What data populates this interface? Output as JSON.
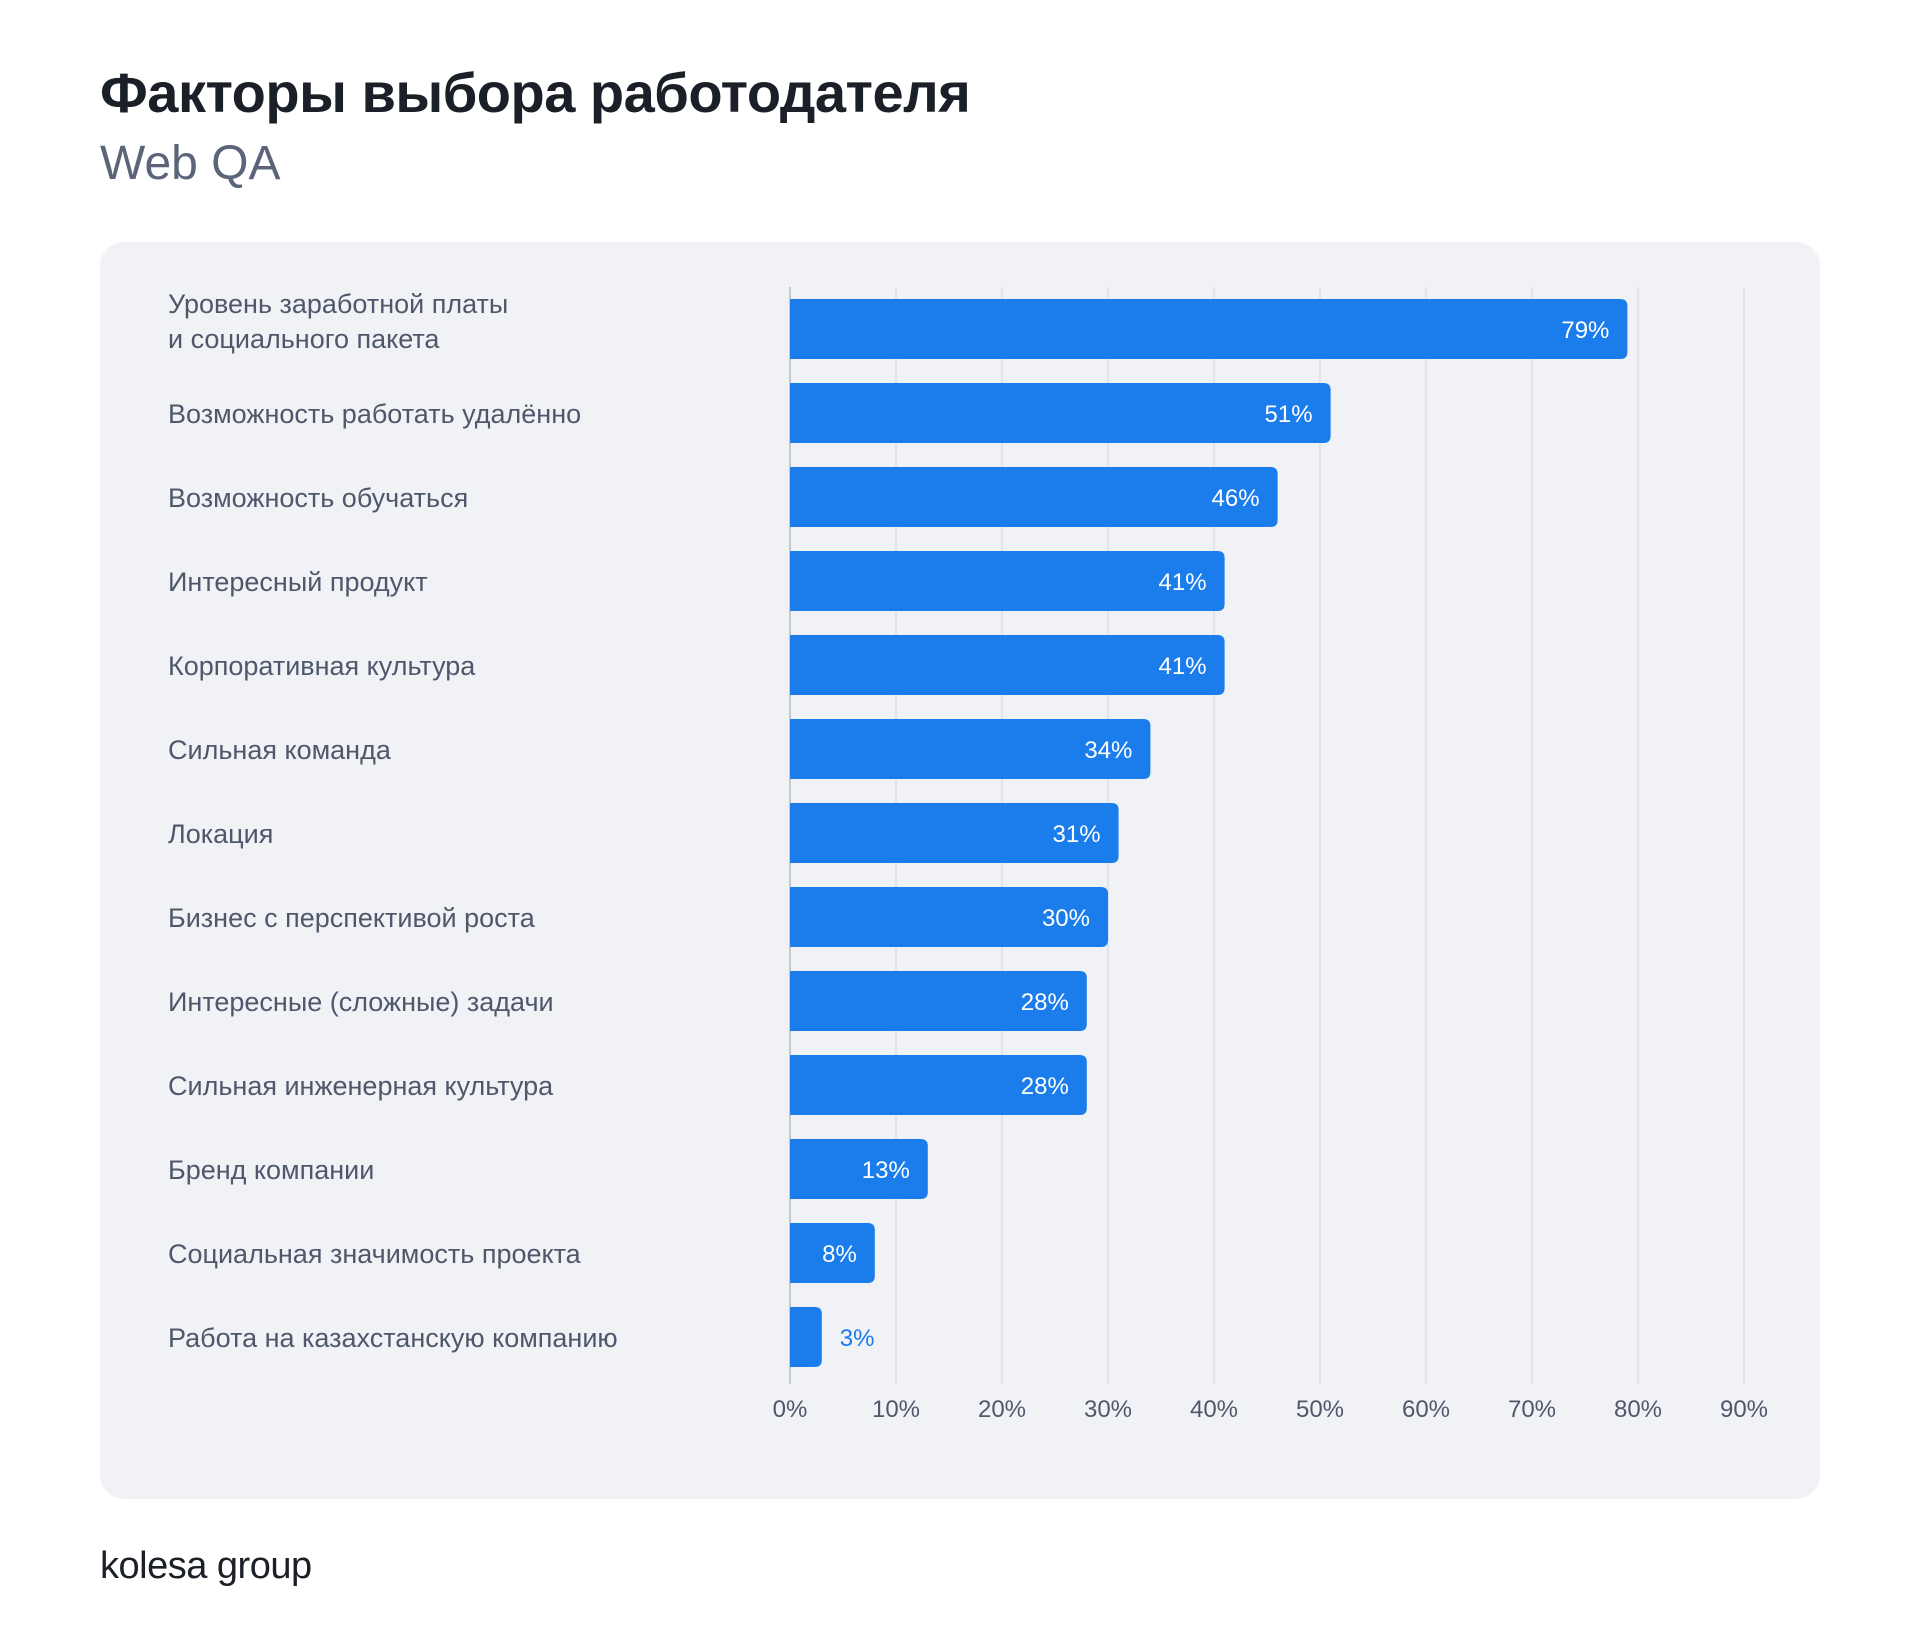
{
  "header": {
    "title": "Факторы выбора работодателя",
    "subtitle": "Web QA"
  },
  "logo": "kolesa group",
  "colors": {
    "bar": "#1b7ceb",
    "label": "#4f586b",
    "grid": "#d3d6dc",
    "tick": "#4f586b",
    "value_outside": "#1b7ceb"
  },
  "chart_data": {
    "type": "bar",
    "orientation": "horizontal",
    "title": "Факторы выбора работодателя",
    "subtitle": "Web QA",
    "categories": [
      [
        "Уровень заработной платы",
        "и социального пакета"
      ],
      [
        "Возможность работать удалённо"
      ],
      [
        "Возможность обучаться"
      ],
      [
        "Интересный продукт"
      ],
      [
        "Корпоративная культура"
      ],
      [
        "Сильная команда"
      ],
      [
        "Локация"
      ],
      [
        "Бизнес с перспективой роста"
      ],
      [
        "Интересные (сложные) задачи"
      ],
      [
        "Сильная инженерная культура"
      ],
      [
        "Бренд компании"
      ],
      [
        "Социальная значимость проекта"
      ],
      [
        "Работа на казахстанскую компанию"
      ]
    ],
    "values": [
      79,
      51,
      46,
      41,
      41,
      34,
      31,
      30,
      28,
      28,
      13,
      8,
      3
    ],
    "value_labels": [
      "79%",
      "51%",
      "46%",
      "41%",
      "41%",
      "34%",
      "31%",
      "30%",
      "28%",
      "28%",
      "13%",
      "8%",
      "3%"
    ],
    "xlim": [
      0,
      90
    ],
    "xticks": [
      "0%",
      "10%",
      "20%",
      "30%",
      "40%",
      "50%",
      "60%",
      "70%",
      "80%",
      "90%"
    ],
    "grid": true
  }
}
